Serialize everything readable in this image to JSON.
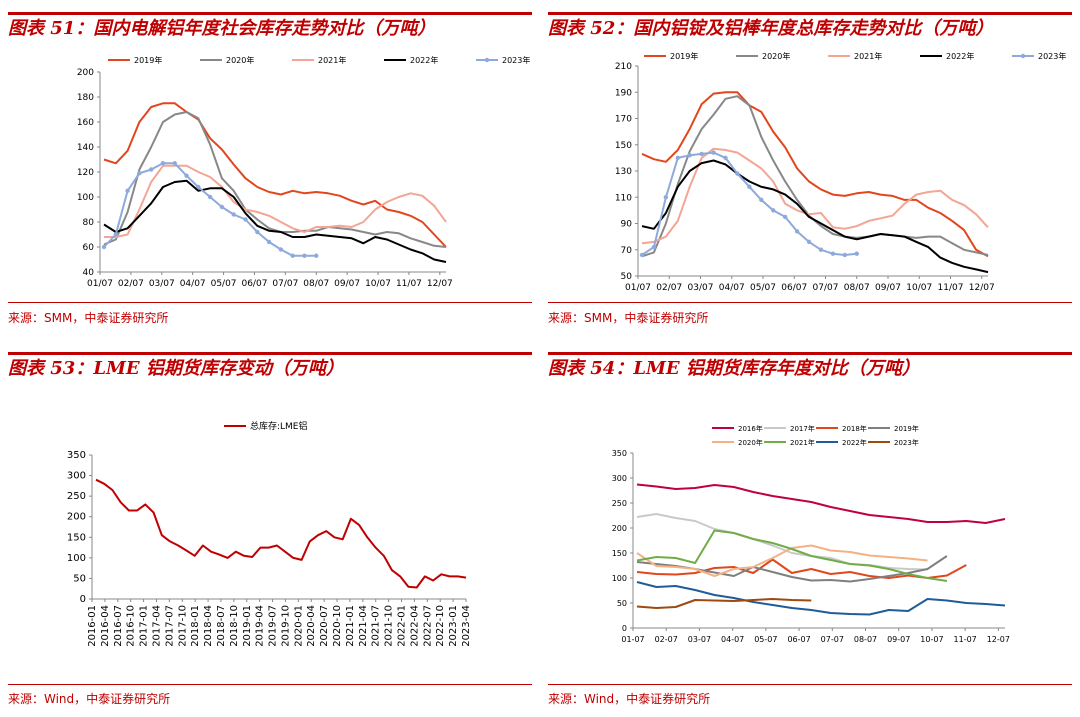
{
  "panels": [
    {
      "title": "图表 51：国内电解铝年度社会库存走势对比（万吨）",
      "source": "来源：SMM，中泰证券研究所"
    },
    {
      "title": "图表 52：国内铝锭及铝棒年度总库存走势对比（万吨）",
      "source": "来源：SMM，中泰证券研究所"
    },
    {
      "title": "图表 53：LME 铝期货库存变动（万吨）",
      "source": "来源：Wind，中泰证券研究所"
    },
    {
      "title": "图表 54：LME 铝期货库存年度对比（万吨）",
      "source": "来源：Wind，中泰证券研究所"
    }
  ],
  "chart_data": [
    {
      "type": "line",
      "ylim": [
        40,
        200
      ],
      "yticks": [
        40,
        60,
        80,
        100,
        120,
        140,
        160,
        180,
        200
      ],
      "xlabels": [
        "01/07",
        "02/07",
        "03/07",
        "04/07",
        "05/07",
        "06/07",
        "07/07",
        "08/07",
        "09/07",
        "10/07",
        "11/07",
        "12/07"
      ],
      "series": [
        {
          "name": "2019年",
          "color": "#e2461d",
          "values": [
            130,
            127,
            137,
            160,
            172,
            175,
            175,
            168,
            162,
            147,
            138,
            126,
            115,
            108,
            104,
            102,
            105,
            103,
            104,
            103,
            101,
            97,
            94,
            97,
            90,
            88,
            85,
            80,
            70,
            60
          ]
        },
        {
          "name": "2020年",
          "color": "#888888",
          "values": [
            62,
            66,
            88,
            122,
            140,
            160,
            166,
            168,
            163,
            142,
            115,
            105,
            90,
            82,
            75,
            72,
            72,
            73,
            73,
            76,
            75,
            74,
            72,
            70,
            72,
            71,
            67,
            64,
            61,
            60
          ]
        },
        {
          "name": "2021年",
          "color": "#f4a594",
          "values": [
            68,
            68,
            70,
            90,
            112,
            125,
            125,
            125,
            120,
            116,
            108,
            96,
            90,
            88,
            85,
            80,
            75,
            72,
            76,
            76,
            77,
            76,
            80,
            90,
            96,
            100,
            103,
            101,
            93,
            80
          ]
        },
        {
          "name": "2022年",
          "color": "#000000",
          "values": [
            78,
            72,
            75,
            85,
            95,
            108,
            112,
            113,
            105,
            107,
            107,
            100,
            87,
            77,
            73,
            72,
            68,
            68,
            70,
            69,
            68,
            67,
            63,
            68,
            66,
            62,
            58,
            55,
            50,
            48
          ]
        },
        {
          "name": "2023年",
          "color": "#8ea9db",
          "marker": true,
          "values": [
            60,
            70,
            105,
            119,
            122,
            127,
            127,
            117,
            108,
            100,
            92,
            86,
            82,
            72,
            64,
            58,
            53,
            53,
            53
          ]
        }
      ]
    },
    {
      "type": "line",
      "ylim": [
        50,
        210
      ],
      "yticks": [
        50,
        70,
        90,
        110,
        130,
        150,
        170,
        190,
        210
      ],
      "xlabels": [
        "01/07",
        "02/07",
        "03/07",
        "04/07",
        "05/07",
        "06/07",
        "07/07",
        "08/07",
        "09/07",
        "10/07",
        "11/07",
        "12/07"
      ],
      "series": [
        {
          "name": "2019年",
          "color": "#e2461d",
          "values": [
            143,
            139,
            137,
            146,
            162,
            181,
            189,
            190,
            190,
            180,
            175,
            160,
            148,
            132,
            122,
            116,
            112,
            111,
            113,
            114,
            112,
            111,
            108,
            108,
            102,
            98,
            92,
            85,
            70,
            65
          ]
        },
        {
          "name": "2020年",
          "color": "#888888",
          "values": [
            65,
            68,
            90,
            120,
            145,
            162,
            173,
            185,
            187,
            180,
            156,
            138,
            122,
            108,
            96,
            88,
            82,
            80,
            79,
            80,
            82,
            81,
            80,
            79,
            80,
            80,
            75,
            70,
            68,
            66
          ]
        },
        {
          "name": "2021年",
          "color": "#f4a594",
          "values": [
            75,
            76,
            80,
            92,
            118,
            140,
            147,
            146,
            144,
            138,
            132,
            122,
            105,
            100,
            97,
            98,
            87,
            86,
            88,
            92,
            94,
            96,
            105,
            112,
            114,
            115,
            108,
            104,
            97,
            87
          ]
        },
        {
          "name": "2022年",
          "color": "#000000",
          "values": [
            88,
            86,
            98,
            118,
            130,
            136,
            138,
            135,
            128,
            122,
            118,
            116,
            112,
            105,
            95,
            90,
            85,
            80,
            78,
            80,
            82,
            81,
            80,
            76,
            72,
            64,
            60,
            57,
            55,
            53
          ]
        },
        {
          "name": "2023年",
          "color": "#8ea9db",
          "marker": true,
          "values": [
            66,
            72,
            110,
            140,
            142,
            143,
            144,
            140,
            128,
            118,
            108,
            100,
            95,
            84,
            76,
            70,
            67,
            66,
            67
          ]
        }
      ]
    },
    {
      "type": "line",
      "ylim": [
        0,
        350
      ],
      "yticks": [
        0,
        50,
        100,
        150,
        200,
        250,
        300,
        350
      ],
      "xlabels": [
        "2016-01",
        "2016-04",
        "2016-07",
        "2016-10",
        "2017-01",
        "2017-04",
        "2017-07",
        "2017-10",
        "2018-01",
        "2018-04",
        "2018-07",
        "2018-10",
        "2019-01",
        "2019-04",
        "2019-07",
        "2019-10",
        "2020-01",
        "2020-04",
        "2020-07",
        "2020-10",
        "2021-01",
        "2021-04",
        "2021-07",
        "2021-10",
        "2022-01",
        "2022-04",
        "2022-07",
        "2022-10",
        "2023-01",
        "2023-04"
      ],
      "series": [
        {
          "name": "总库存:LME铝",
          "color": "#c00000",
          "values": [
            290,
            280,
            265,
            235,
            215,
            215,
            230,
            210,
            155,
            140,
            130,
            118,
            105,
            130,
            115,
            108,
            100,
            115,
            105,
            102,
            125,
            125,
            130,
            115,
            100,
            95,
            140,
            155,
            165,
            150,
            145,
            195,
            180,
            150,
            125,
            105,
            70,
            55,
            30,
            28,
            55,
            45,
            60,
            55,
            55,
            52
          ]
        }
      ]
    },
    {
      "type": "line",
      "ylim": [
        0,
        350
      ],
      "yticks": [
        0,
        50,
        100,
        150,
        200,
        250,
        300,
        350
      ],
      "xlabels": [
        "01-07",
        "02-07",
        "03-07",
        "04-07",
        "05-07",
        "06-07",
        "07-07",
        "08-07",
        "09-07",
        "10-07",
        "11-07",
        "12-07"
      ],
      "series": [
        {
          "name": "2016年",
          "color": "#c00040",
          "values": [
            287,
            283,
            278,
            280,
            286,
            282,
            272,
            264,
            258,
            252,
            242,
            234,
            226,
            222,
            218,
            212,
            212,
            214,
            210,
            218
          ]
        },
        {
          "name": "2017年",
          "color": "#c9c9c9",
          "values": [
            222,
            228,
            220,
            214,
            198,
            190,
            178,
            165,
            150,
            144,
            140,
            128,
            126,
            120,
            118,
            117
          ]
        },
        {
          "name": "2018年",
          "color": "#e2461d",
          "values": [
            112,
            108,
            107,
            110,
            120,
            122,
            110,
            137,
            110,
            118,
            108,
            112,
            104,
            100,
            105,
            100,
            105,
            126
          ]
        },
        {
          "name": "2019年",
          "color": "#7f7f7f",
          "values": [
            132,
            128,
            124,
            118,
            111,
            104,
            122,
            112,
            102,
            95,
            96,
            93,
            98,
            104,
            110,
            118,
            144
          ]
        },
        {
          "name": "2020年",
          "color": "#f4b183",
          "values": [
            150,
            124,
            122,
            118,
            104,
            118,
            122,
            140,
            160,
            165,
            155,
            152,
            145,
            142,
            139,
            135
          ]
        },
        {
          "name": "2021年",
          "color": "#70ad47",
          "values": [
            135,
            142,
            140,
            130,
            195,
            190,
            178,
            170,
            158,
            144,
            136,
            128,
            125,
            118,
            108,
            100,
            94
          ]
        },
        {
          "name": "2022年",
          "color": "#1f5c99",
          "values": [
            92,
            82,
            84,
            76,
            66,
            60,
            52,
            46,
            40,
            36,
            30,
            28,
            27,
            36,
            34,
            58,
            55,
            50,
            48,
            45
          ]
        },
        {
          "name": "2023年",
          "color": "#9c4a12",
          "values": [
            43,
            40,
            42,
            56,
            55,
            54,
            56,
            58,
            56,
            55
          ]
        }
      ]
    }
  ]
}
